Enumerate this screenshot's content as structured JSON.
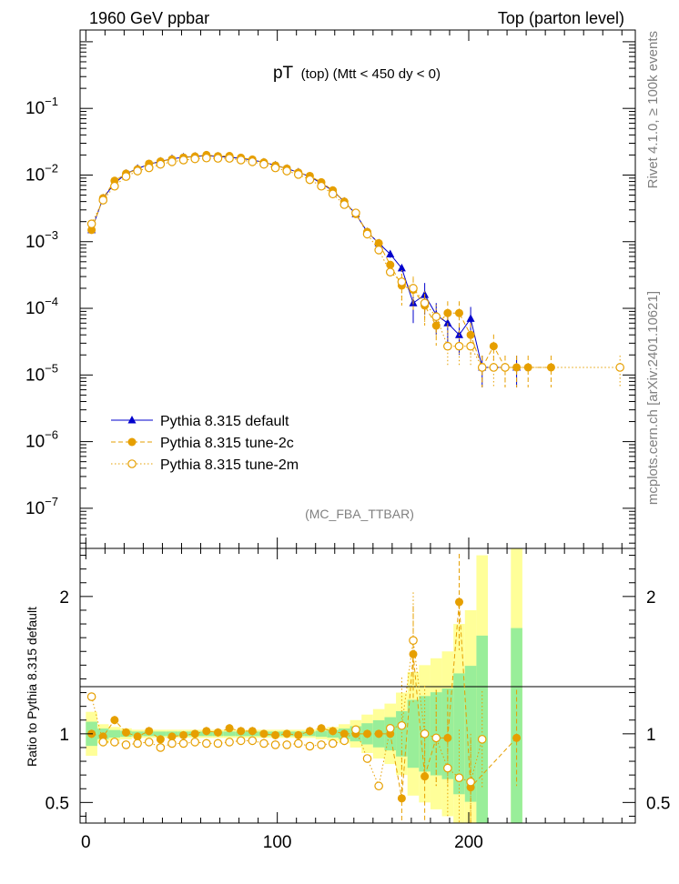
{
  "header": {
    "left": "1960 GeV ppbar",
    "right": "Top (parton level)"
  },
  "side": {
    "rivet": "Rivet 4.1.0, ≥ 100k events",
    "mcplots": "mcplots.cern.ch [arXiv:2401.10621]"
  },
  "chart_data": {
    "type": "line",
    "title_main": "pT",
    "title_sub": "(top) (Mtt < 450 dy < 0)",
    "analysis": "(MC_FBA_TTBAR)",
    "xlim": [
      -3,
      287
    ],
    "ylim_log": [
      2.5e-08,
      1.5
    ],
    "x_ticks": [
      "0",
      "100",
      "200"
    ],
    "x_tick_values": [
      0,
      100,
      200
    ],
    "y_tick_base": [
      "10",
      "10",
      "10",
      "10",
      "10",
      "10",
      "10"
    ],
    "y_tick_exp": [
      "−1",
      "−2",
      "−3",
      "−4",
      "−5",
      "−6",
      "−7"
    ],
    "y_tick_values": [
      0.1,
      0.01,
      0.001,
      0.0001,
      1e-05,
      1e-06,
      1e-07
    ],
    "legend": [
      {
        "name": "Pythia 8.315 default",
        "color": "#0000cc",
        "style": "solid",
        "marker": "triangle"
      },
      {
        "name": "Pythia 8.315 tune-2c",
        "color": "#e69f00",
        "style": "dashed",
        "marker": "circle-filled"
      },
      {
        "name": "Pythia 8.315 tune-2m",
        "color": "#e69f00",
        "style": "dotted",
        "marker": "circle-open"
      }
    ],
    "series": [
      {
        "name": "Pythia 8.315 default",
        "x": [
          3,
          9,
          15,
          21,
          27,
          33,
          39,
          45,
          51,
          57,
          63,
          69,
          75,
          81,
          87,
          93,
          99,
          105,
          111,
          117,
          123,
          129,
          135,
          141,
          147,
          153,
          159,
          165,
          171,
          177,
          183,
          189,
          195,
          201,
          207,
          225
        ],
        "values": [
          0.0015,
          0.0045,
          0.0075,
          0.0105,
          0.0125,
          0.0145,
          0.016,
          0.0175,
          0.0185,
          0.019,
          0.0195,
          0.019,
          0.0185,
          0.0178,
          0.0168,
          0.0155,
          0.014,
          0.0125,
          0.011,
          0.0095,
          0.0075,
          0.0058,
          0.004,
          0.0026,
          0.0014,
          0.00095,
          0.00065,
          0.0004,
          0.00012,
          0.00016,
          8e-05,
          6e-05,
          4e-05,
          7e-05,
          1.3e-05,
          1.3e-05
        ]
      },
      {
        "name": "Pythia 8.315 tune-2c",
        "x": [
          3,
          9,
          15,
          21,
          27,
          33,
          39,
          45,
          51,
          57,
          63,
          69,
          75,
          81,
          87,
          93,
          99,
          105,
          111,
          117,
          123,
          129,
          135,
          141,
          147,
          153,
          159,
          165,
          171,
          177,
          183,
          189,
          195,
          201,
          207,
          213,
          219,
          225,
          231,
          243
        ],
        "values": [
          0.0015,
          0.0045,
          0.0082,
          0.0105,
          0.0122,
          0.0148,
          0.016,
          0.0172,
          0.0183,
          0.019,
          0.02,
          0.0192,
          0.0193,
          0.0182,
          0.0171,
          0.0155,
          0.0139,
          0.0125,
          0.0109,
          0.0097,
          0.0078,
          0.0059,
          0.004,
          0.0026,
          0.0014,
          0.00095,
          0.00045,
          0.00022,
          0.00019,
          0.00011,
          5.5e-05,
          8.5e-05,
          8.5e-05,
          4e-05,
          1.3e-05,
          2.7e-05,
          1.3e-05,
          1.3e-05,
          1.3e-05,
          1.3e-05
        ]
      },
      {
        "name": "Pythia 8.315 tune-2m",
        "x": [
          3,
          9,
          15,
          21,
          27,
          33,
          39,
          45,
          51,
          57,
          63,
          69,
          75,
          81,
          87,
          93,
          99,
          105,
          111,
          117,
          123,
          129,
          135,
          141,
          147,
          153,
          159,
          165,
          171,
          177,
          183,
          189,
          195,
          201,
          207,
          213,
          219,
          279
        ],
        "values": [
          0.00185,
          0.0042,
          0.0068,
          0.0095,
          0.0115,
          0.0128,
          0.0145,
          0.0158,
          0.0168,
          0.0175,
          0.018,
          0.0178,
          0.0178,
          0.0168,
          0.0158,
          0.0145,
          0.0128,
          0.0115,
          0.0102,
          0.0085,
          0.0068,
          0.0052,
          0.0036,
          0.0027,
          0.0013,
          0.00075,
          0.00035,
          0.00025,
          0.0002,
          0.00012,
          7.5e-05,
          2.7e-05,
          2.7e-05,
          2.7e-05,
          1.3e-05,
          1.3e-05,
          1.3e-05,
          1.3e-05
        ]
      }
    ],
    "ratio": {
      "ylabel": "Ratio to Pythia 8.315 default",
      "ylim": [
        0.35,
        2.35
      ],
      "y_ticks": [
        "0.5",
        "1",
        "2"
      ],
      "y_tick_values": [
        0.5,
        1,
        2
      ],
      "series": [
        {
          "name": "Pythia 8.315 tune-2c",
          "x": [
            3,
            9,
            15,
            21,
            27,
            33,
            39,
            45,
            51,
            57,
            63,
            69,
            75,
            81,
            87,
            93,
            99,
            105,
            111,
            117,
            123,
            129,
            135,
            141,
            147,
            153,
            159,
            165,
            171,
            177,
            183,
            189,
            195,
            201,
            225
          ],
          "values": [
            1.0,
            0.98,
            1.1,
            1.01,
            0.98,
            1.02,
            0.96,
            0.98,
            0.99,
            1.0,
            1.02,
            1.01,
            1.04,
            1.02,
            1.02,
            1.0,
            0.99,
            1.0,
            0.99,
            1.02,
            1.04,
            1.02,
            1.0,
            1.0,
            1.0,
            1.0,
            1.0,
            0.53,
            1.58,
            0.69,
            0.97,
            0.97,
            1.96,
            0.61,
            0.97
          ]
        },
        {
          "name": "Pythia 8.315 tune-2m",
          "x": [
            3,
            9,
            15,
            21,
            27,
            33,
            39,
            45,
            51,
            57,
            63,
            69,
            75,
            81,
            87,
            93,
            99,
            105,
            111,
            117,
            123,
            129,
            135,
            141,
            147,
            153,
            159,
            165,
            171,
            177,
            183,
            189,
            195,
            201,
            207
          ],
          "values": [
            1.27,
            0.94,
            0.94,
            0.92,
            0.93,
            0.94,
            0.9,
            0.93,
            0.93,
            0.94,
            0.93,
            0.93,
            0.94,
            0.95,
            0.95,
            0.93,
            0.92,
            0.92,
            0.93,
            0.91,
            0.92,
            0.93,
            0.95,
            1.03,
            0.82,
            0.62,
            1.04,
            1.06,
            1.68,
            1.0,
            0.97,
            0.75,
            0.68,
            0.65,
            0.96
          ]
        }
      ]
    }
  }
}
